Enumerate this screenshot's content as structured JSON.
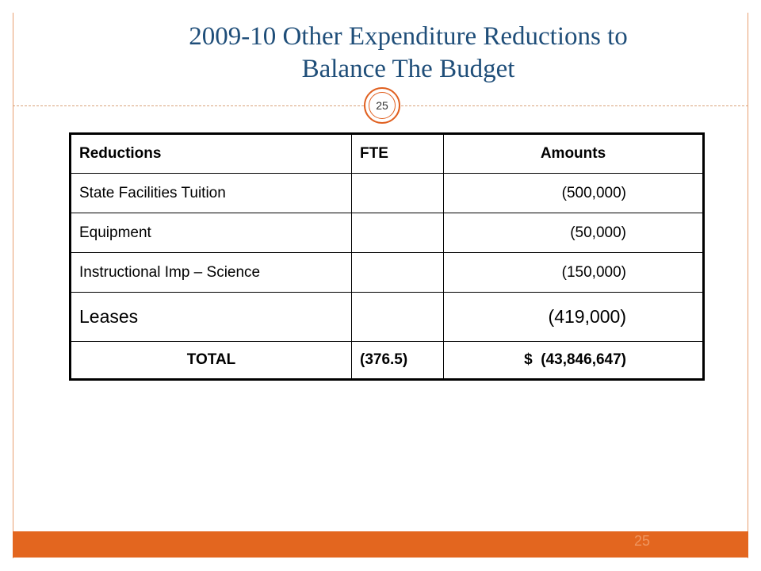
{
  "slide": {
    "title_line1": "2009-10 Other Expenditure Reductions to",
    "title_line2": "Balance The Budget",
    "page_badge": "25",
    "footer_page": "25"
  },
  "table": {
    "headers": [
      "Reductions",
      "FTE",
      "Amounts"
    ],
    "rows": [
      {
        "reduction": "State Facilities Tuition",
        "fte": "",
        "amount": "(500,000)"
      },
      {
        "reduction": "Equipment",
        "fte": "",
        "amount": "(50,000)"
      },
      {
        "reduction": "Instructional Imp – Science",
        "fte": "",
        "amount": "(150,000)"
      },
      {
        "reduction": "Leases",
        "fte": "",
        "amount": "(419,000)"
      }
    ],
    "total": {
      "label": "TOTAL",
      "fte": "(376.5)",
      "amount": "$  (43,846,647)"
    }
  }
}
